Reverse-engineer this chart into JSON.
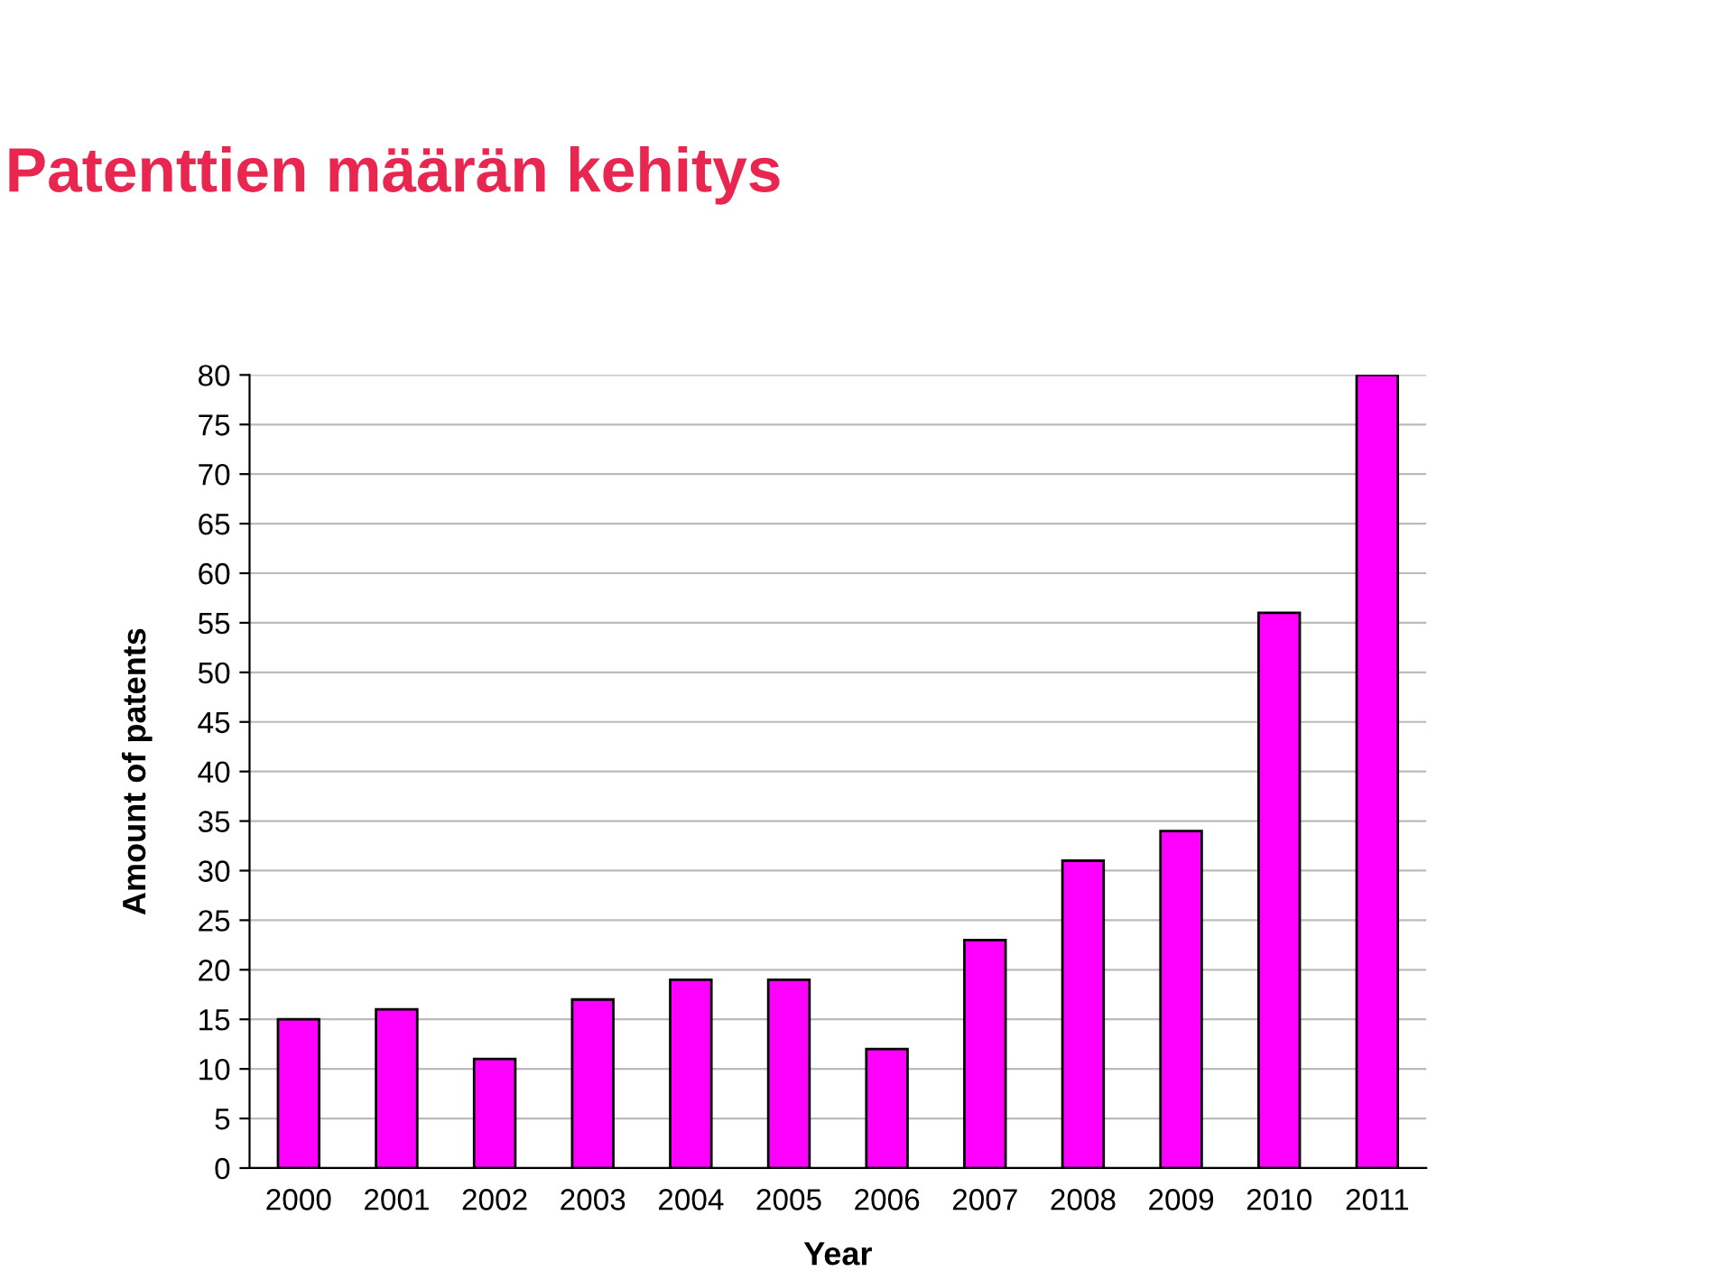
{
  "chart_data": {
    "type": "bar",
    "title": "Patenttien määrän kehitys",
    "xlabel": "Year",
    "ylabel": "Amount of patents",
    "categories": [
      "2000",
      "2001",
      "2002",
      "2003",
      "2004",
      "2005",
      "2006",
      "2007",
      "2008",
      "2009",
      "2010",
      "2011"
    ],
    "values": [
      15,
      16,
      11,
      17,
      19,
      19,
      12,
      23,
      31,
      34,
      56,
      80
    ],
    "color": "#ff00ff",
    "ylim": [
      0,
      80
    ],
    "yticks": [
      0,
      5,
      10,
      15,
      20,
      25,
      30,
      35,
      40,
      45,
      50,
      55,
      60,
      65,
      70,
      75,
      80
    ],
    "grid": "y",
    "legend": false
  }
}
